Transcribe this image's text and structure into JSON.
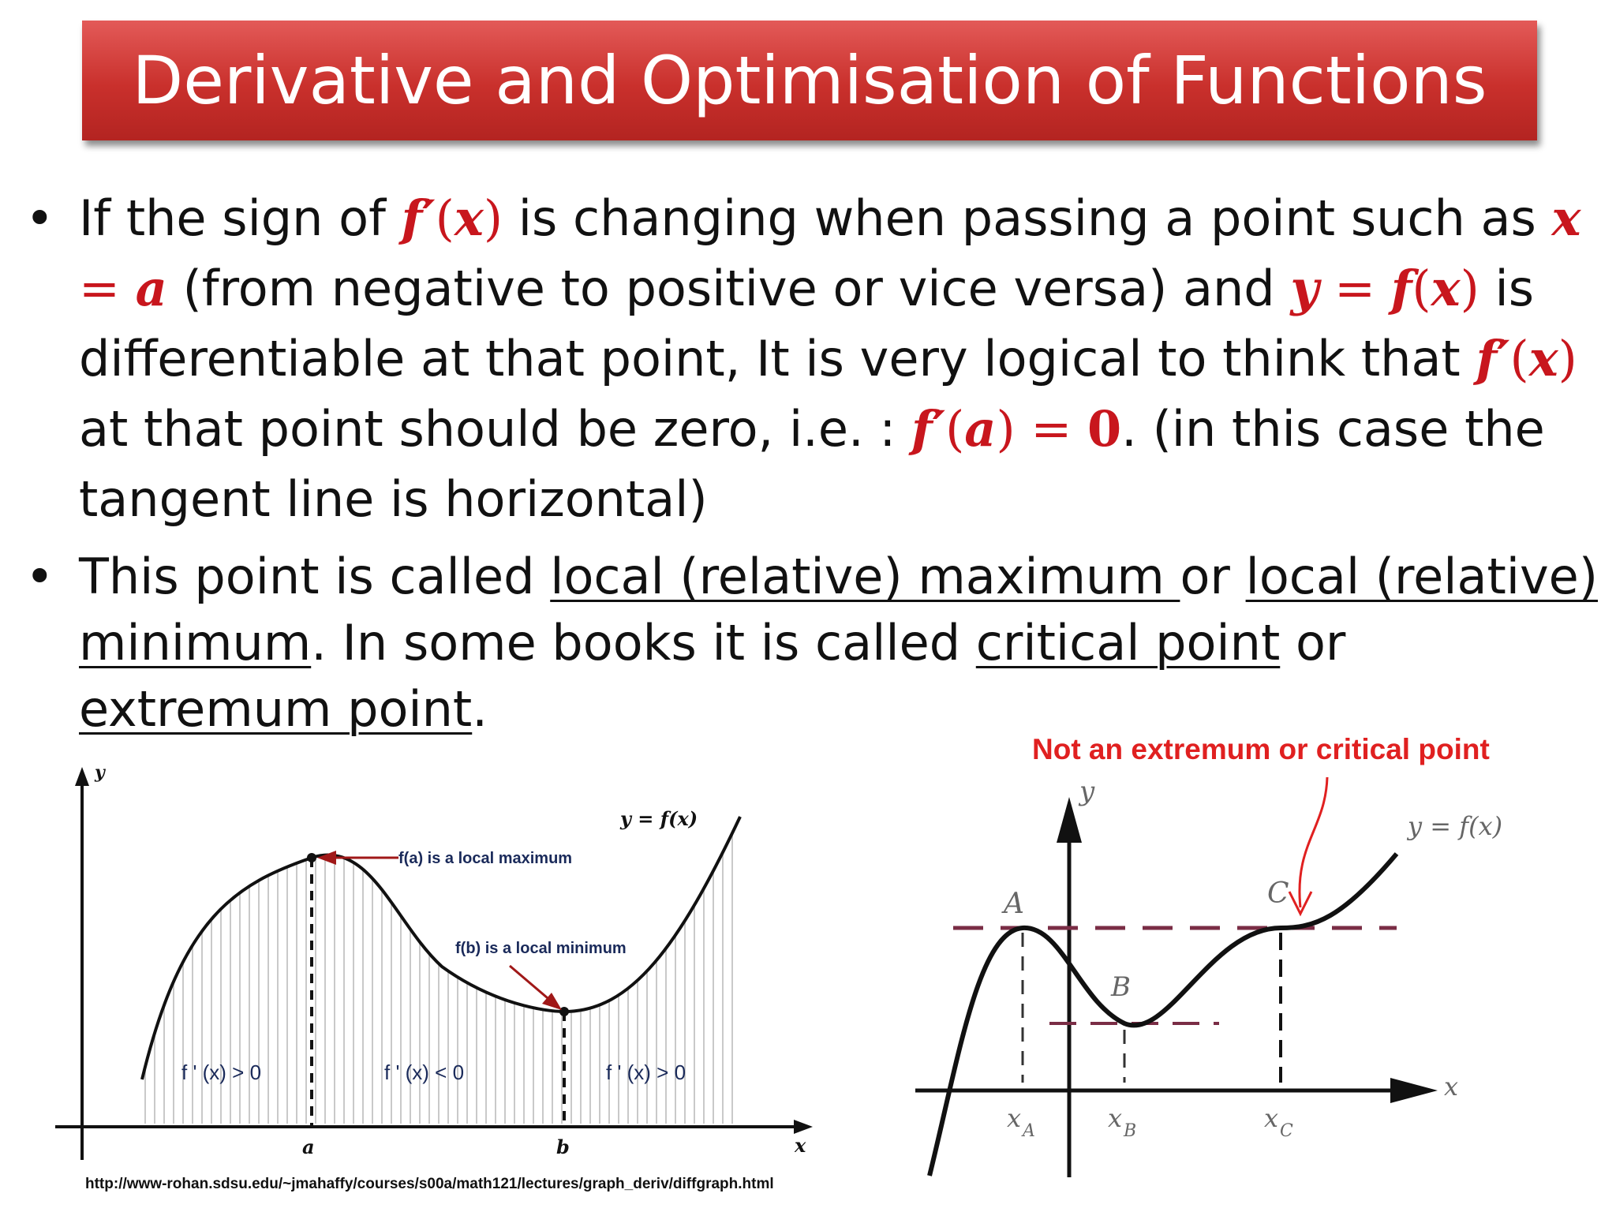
{
  "title": "Derivative and Optimisation of Functions",
  "bullet1": {
    "t1": "If the sign of ",
    "m1a": "f′",
    "m1b": "(",
    "m1c": "x",
    "m1d": ")",
    "t2": " is changing when passing a point such as ",
    "m2a": "x",
    "m2b": " = ",
    "m2c": "a",
    "t3": " (from negative to positive or vice versa) and ",
    "m3a": "y",
    "m3b": " = ",
    "m3c": "f",
    "m3d": "(",
    "m3e": "x",
    "m3f": ")",
    "t4": " is differentiable at that point, It is very logical to think that ",
    "m4a": "f′",
    "m4b": "(",
    "m4c": "x",
    "m4d": ")",
    "t5": " at that point should be zero, i.e. : ",
    "m5a": "f′",
    "m5b": "(",
    "m5c": "a",
    "m5d": ")",
    "m5e": " = ",
    "m5f": "0",
    "t6": ". (in this case the tangent line is horizontal)"
  },
  "bullet2": {
    "t1": "This point is called ",
    "u1": "local (relative) maximum ",
    "t2": "or ",
    "u2": "local (relative) minimum",
    "t3": ". In some books it is called ",
    "u3": "critical point",
    "t4": " or ",
    "u4": "extremum point",
    "t5": "."
  },
  "figure_left": {
    "y_axis": "y",
    "x_axis": "x",
    "curve_label": "y = f(x)",
    "max_note": "f(a) is a local maximum",
    "min_note": "f(b) is a local minimum",
    "x_a": "a",
    "x_b": "b",
    "region1": "f ' (x) > 0",
    "region2": "f ' (x) < 0",
    "region3": "f ' (x) > 0",
    "source_url": "http://www-rohan.sdsu.edu/~jmahaffy/courses/s00a/math121/lectures/graph_deriv/diffgraph.html"
  },
  "figure_right": {
    "heading": "Not an extremum or critical point",
    "y_axis": "y",
    "x_axis": "x",
    "curve_label": "y = f(x)",
    "point_a": "A",
    "point_b": "B",
    "point_c": "C",
    "xa": "x",
    "xa_sub": "A",
    "xb": "x",
    "xb_sub": "B",
    "xc": "x",
    "xc_sub": "C"
  },
  "colors": {
    "title_bg": "#c9302c",
    "math": "#c8161d",
    "annotation": "#e02020",
    "dashes": "#7a2d45"
  }
}
